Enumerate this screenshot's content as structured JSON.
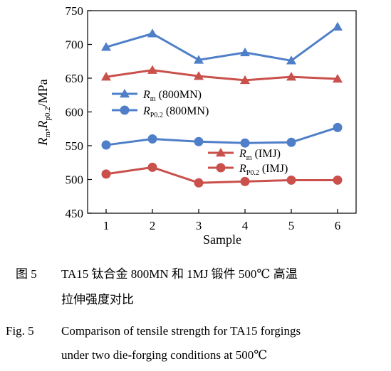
{
  "chart_data": {
    "type": "line",
    "x": [
      1,
      2,
      3,
      4,
      5,
      6
    ],
    "xlabel": "Sample",
    "ylabel": "R_m, R_p0.2 /MPa",
    "ylabel_parts": {
      "r1": "R",
      "s1": "m",
      "comma": ",",
      "r2": "R",
      "s2": "p0.2",
      "unit": "/MPa"
    },
    "xlim": [
      0.6,
      6.4
    ],
    "ylim": [
      450,
      750
    ],
    "yticks": [
      450,
      500,
      550,
      600,
      650,
      700,
      750
    ],
    "grid": false,
    "legend_placement": "inside-middle",
    "series": [
      {
        "name": "Rm (800MN)",
        "name_parts": {
          "r": "R",
          "sub": "m",
          "rest": " (800MN)"
        },
        "marker": "triangle",
        "color": "#4f7fc9",
        "values": [
          696,
          716,
          677,
          688,
          676,
          726
        ]
      },
      {
        "name": "Rp0.2 (800MN)",
        "name_parts": {
          "r": "R",
          "sub": "P0.2",
          "rest": " (800MN)"
        },
        "marker": "circle",
        "color": "#4f7fc9",
        "values": [
          551,
          560,
          556,
          554,
          555,
          577
        ]
      },
      {
        "name": "Rm (IMJ)",
        "name_parts": {
          "r": "R",
          "sub": "m",
          "rest": " (IMJ)"
        },
        "marker": "triangle",
        "color": "#c9504b",
        "values": [
          652,
          662,
          653,
          647,
          652,
          649
        ]
      },
      {
        "name": "Rp0.2 (IMJ)",
        "name_parts": {
          "r": "R",
          "sub": "P0.2",
          "rest": " (IMJ)"
        },
        "marker": "circle",
        "color": "#c9504b",
        "values": [
          508,
          518,
          495,
          497,
          499,
          499
        ]
      }
    ]
  },
  "caption": {
    "cn_label": "图 5",
    "cn_text_line1": "TA15 钛合金 800MN 和 1MJ 锻件 500℃ 高温",
    "cn_text_line2": "拉伸强度对比",
    "en_label": "Fig. 5",
    "en_text_line1": "Comparison of tensile strength for TA15 forgings",
    "en_text_line2": "under two die-forging conditions at 500℃"
  }
}
